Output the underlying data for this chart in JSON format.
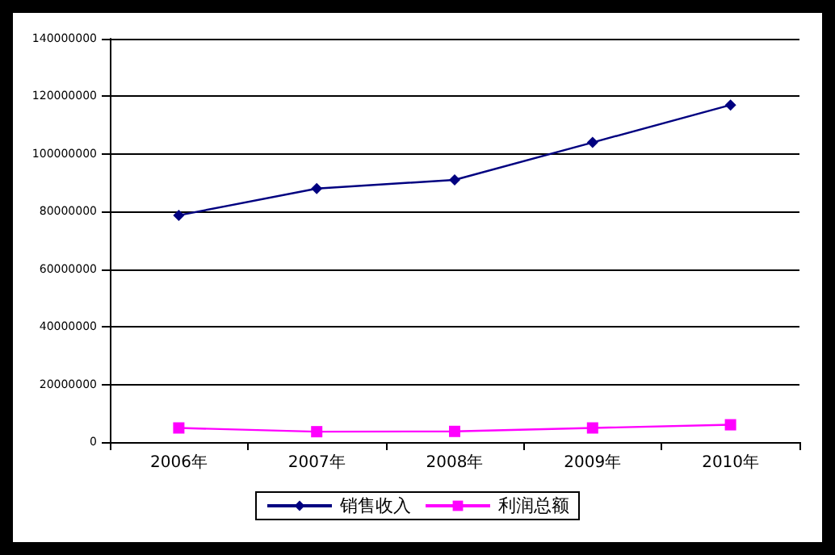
{
  "chart_data": {
    "type": "line",
    "categories": [
      "2006年",
      "2007年",
      "2008年",
      "2009年",
      "2010年"
    ],
    "series": [
      {
        "name": "销售收入",
        "color": "#000080",
        "marker": "diamond",
        "values": [
          78700000,
          88000000,
          91000000,
          104000000,
          117000000
        ]
      },
      {
        "name": "利润总额",
        "color": "#ff00ff",
        "marker": "square",
        "values": [
          4900000,
          3600000,
          3700000,
          4900000,
          6000000
        ]
      }
    ],
    "ylim": [
      0,
      140000000
    ],
    "yticks": [
      0,
      20000000,
      40000000,
      60000000,
      80000000,
      100000000,
      120000000,
      140000000
    ],
    "grid": "y",
    "legend": "bottom",
    "line_style": "solid"
  }
}
